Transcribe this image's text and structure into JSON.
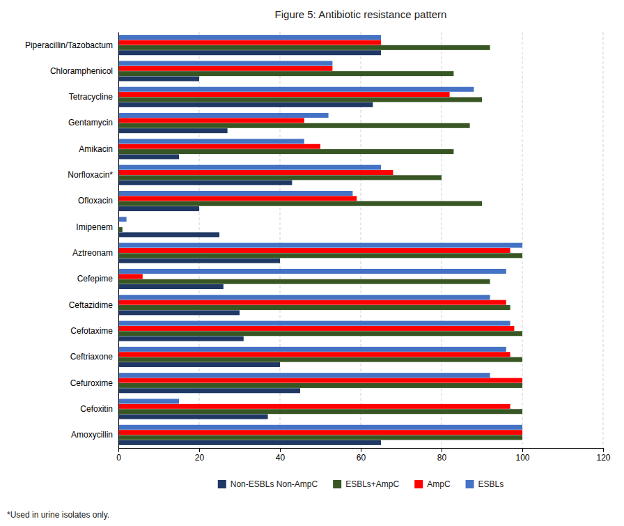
{
  "chart_data": {
    "type": "bar",
    "orientation": "horizontal",
    "title": "Figure 5: Antibiotic resistance pattern",
    "categories": [
      "Piperacillin/Tazobactum",
      "Chloramphenicol",
      "Tetracycline",
      "Gentamycin",
      "Amikacin",
      "Norfloxacin*",
      "Ofloxacin",
      "Imipenem",
      "Aztreonam",
      "Cefepime",
      "Ceftazidime",
      "Cefotaxime",
      "Ceftriaxone",
      "Cefuroxime",
      "Cefoxitin",
      "Amoxycillin"
    ],
    "series": [
      {
        "name": "Non-ESBLs Non-AmpC",
        "color": "#1F3864",
        "values": [
          65,
          20,
          63,
          27,
          15,
          43,
          20,
          25,
          40,
          26,
          30,
          31,
          40,
          45,
          37,
          65
        ]
      },
      {
        "name": "ESBLs+AmpC",
        "color": "#375623",
        "values": [
          92,
          83,
          90,
          87,
          83,
          80,
          90,
          1,
          100,
          92,
          97,
          100,
          100,
          100,
          100,
          100
        ]
      },
      {
        "name": "AmpC",
        "color": "#FF0000",
        "values": [
          65,
          53,
          82,
          46,
          50,
          68,
          59,
          0,
          97,
          6,
          96,
          98,
          97,
          100,
          97,
          100
        ]
      },
      {
        "name": "ESBLs",
        "color": "#4472C4",
        "values": [
          65,
          53,
          88,
          52,
          46,
          65,
          58,
          2,
          100,
          96,
          92,
          97,
          96,
          92,
          15,
          100
        ]
      }
    ],
    "xlim": [
      0,
      120
    ],
    "xticks": [
      0,
      20,
      40,
      60,
      80,
      100,
      120
    ],
    "grid": true,
    "legend": "bottom",
    "footnote": "*Used in urine isolates only."
  }
}
